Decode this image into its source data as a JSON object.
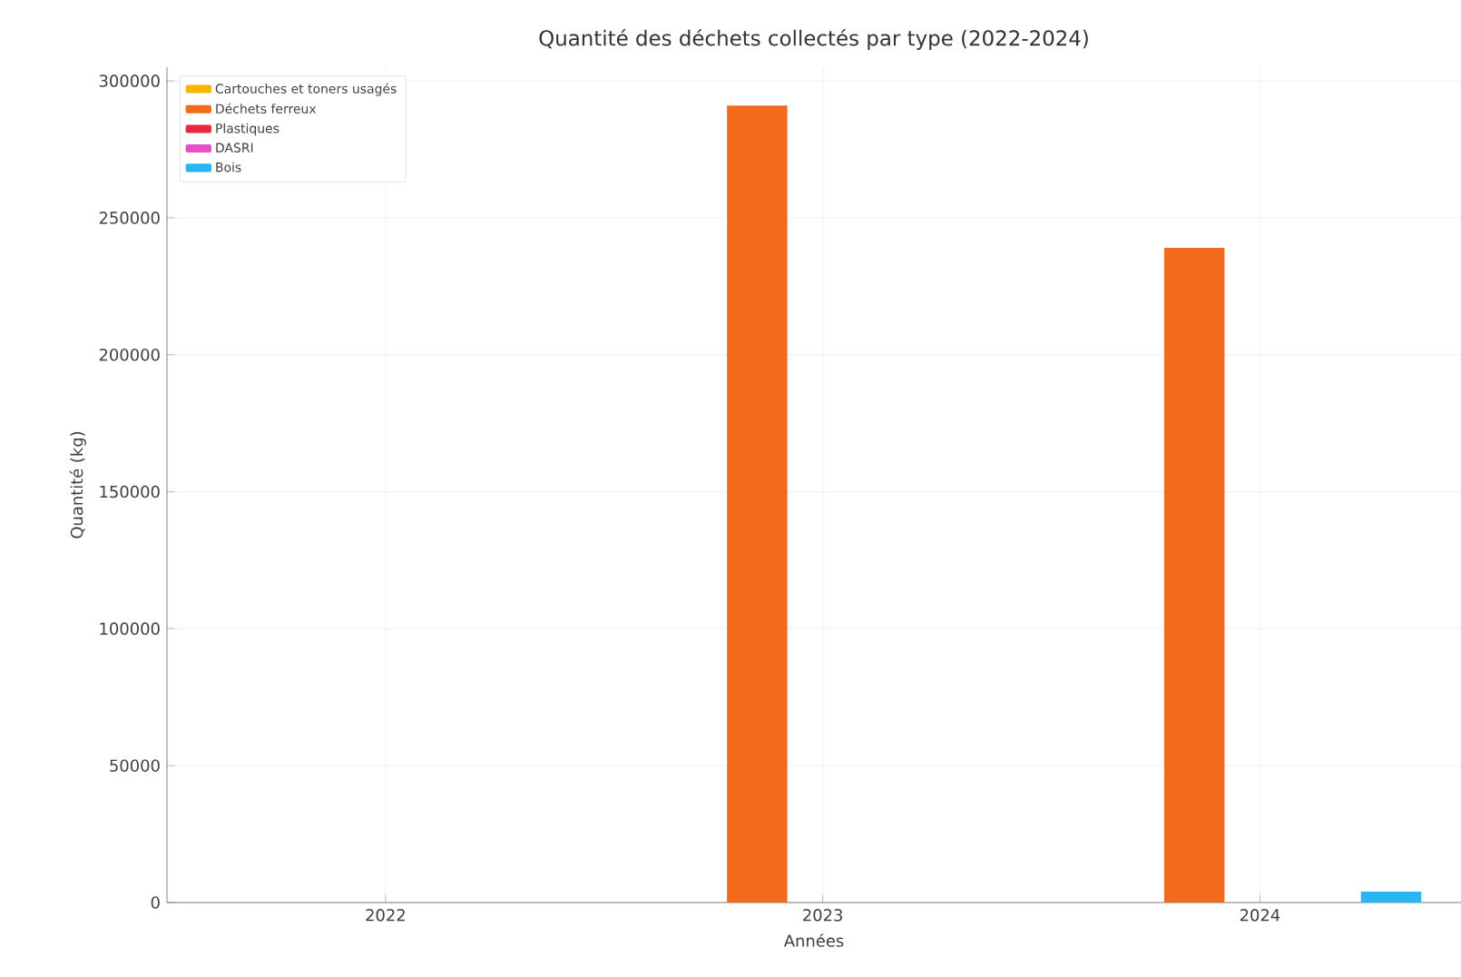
{
  "chart_data": {
    "type": "bar",
    "title": "Quantité des déchets collectés par type (2022-2024)",
    "xlabel": "Années",
    "ylabel": "Quantité (kg)",
    "categories": [
      "2022",
      "2023",
      "2024"
    ],
    "series": [
      {
        "name": "Cartouches et toners usagés",
        "color": "#f7b500",
        "values": [
          0,
          0,
          0
        ]
      },
      {
        "name": "Déchets ferreux",
        "color": "#f26b1d",
        "values": [
          0,
          291000,
          239000
        ]
      },
      {
        "name": "Plastiques",
        "color": "#e8283c",
        "values": [
          0,
          0,
          0
        ]
      },
      {
        "name": "DASRI",
        "color": "#e84fc4",
        "values": [
          0,
          0,
          0
        ]
      },
      {
        "name": "Bois",
        "color": "#29b6f0",
        "values": [
          0,
          0,
          4000
        ]
      }
    ],
    "ylim": [
      0,
      305000
    ],
    "yticks": [
      0,
      50000,
      100000,
      150000,
      200000,
      250000,
      300000
    ],
    "grid": true,
    "legend": "top left"
  }
}
